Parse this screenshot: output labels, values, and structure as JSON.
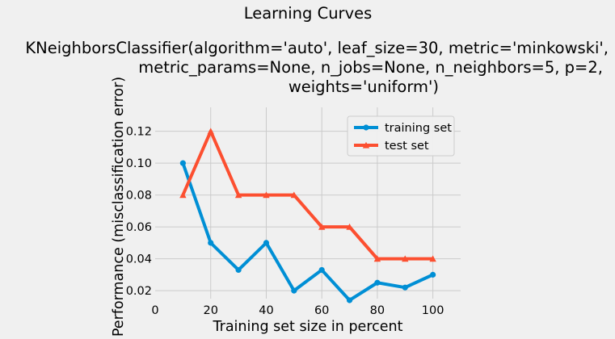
{
  "chart_data": {
    "type": "line",
    "title": "Learning Curves",
    "subtitle_lines": [
      "KNeighborsClassifier(algorithm='auto', leaf_size=30, metric='minkowski',",
      "metric_params=None, n_jobs=None, n_neighbors=5, p=2,",
      "weights='uniform')"
    ],
    "xlabel": "Training set size in percent",
    "ylabel": "Performance (misclassification error)",
    "xlim": [
      0,
      110
    ],
    "ylim": [
      0.015,
      0.135
    ],
    "xticks": [
      0,
      20,
      40,
      60,
      80,
      100
    ],
    "yticks": [
      0.02,
      0.04,
      0.06,
      0.08,
      0.1,
      0.12
    ],
    "ytick_labels": [
      "0.02",
      "0.04",
      "0.06",
      "0.08",
      "0.10",
      "0.12"
    ],
    "grid": true,
    "legend_position": "upper-right",
    "x": [
      10,
      20,
      30,
      40,
      50,
      60,
      70,
      80,
      90,
      100
    ],
    "series": [
      {
        "name": "training set",
        "color": "#008fd5",
        "marker": "circle",
        "values": [
          0.1,
          0.05,
          0.033,
          0.05,
          0.02,
          0.033,
          0.014,
          0.025,
          0.022,
          0.03
        ]
      },
      {
        "name": "test set",
        "color": "#fc4f30",
        "marker": "triangle",
        "values": [
          0.08,
          0.12,
          0.08,
          0.08,
          0.08,
          0.06,
          0.06,
          0.04,
          0.04,
          0.04
        ]
      }
    ]
  }
}
